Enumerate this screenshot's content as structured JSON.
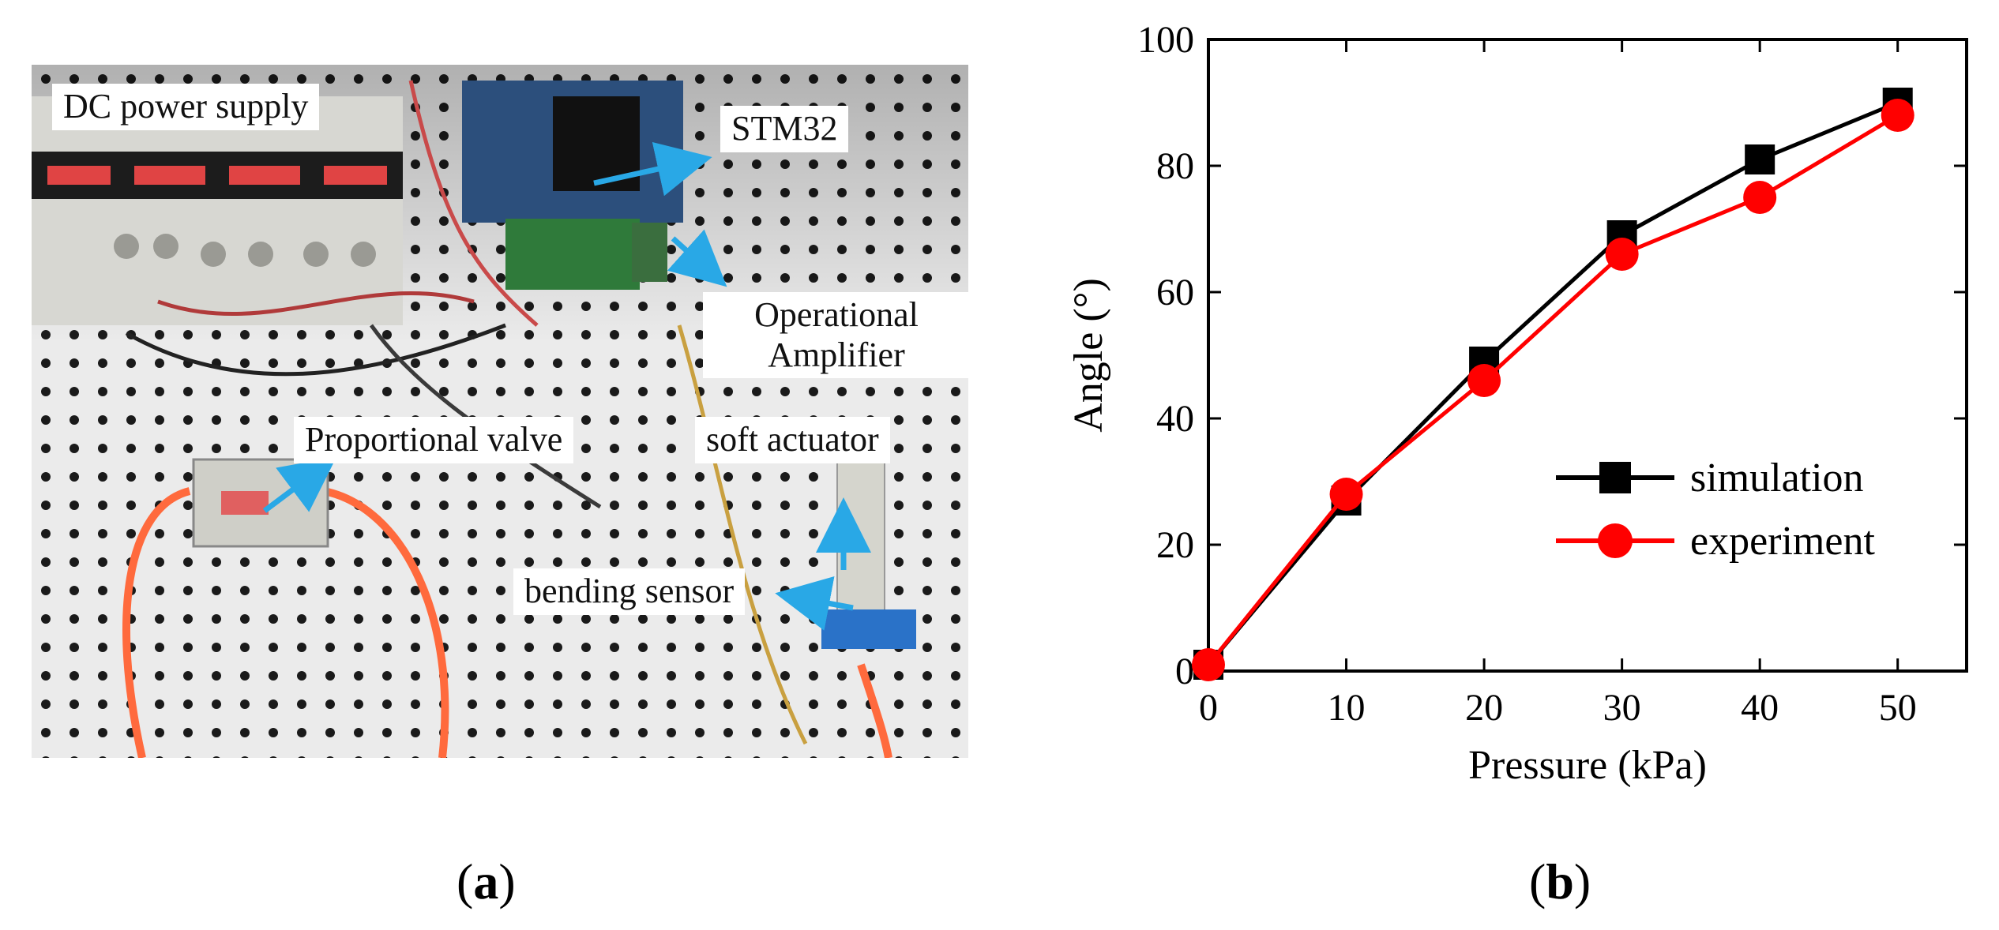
{
  "figure": {
    "panel_a": {
      "caption_open": "(",
      "caption_letter": "a",
      "caption_close": ")",
      "labels": {
        "dc_power_supply": "DC power supply",
        "stm32": "STM32",
        "op_amp_line1": "Operational",
        "op_amp_line2": "Amplifier",
        "proportional_valve": "Proportional valve",
        "soft_actuator": "soft actuator",
        "bending_sensor": "bending sensor"
      },
      "colors": {
        "arrow": "#29a8e6",
        "board": "#ebebeb",
        "hole": "#1a1a1a",
        "tube": "#ff6a3d"
      }
    },
    "panel_b": {
      "caption_open": "(",
      "caption_letter": "b",
      "caption_close": ")"
    }
  },
  "chart_data": {
    "type": "line",
    "title": "",
    "xlabel": "Pressure (kPa)",
    "ylabel": "Angle (°)",
    "xlim": [
      0,
      55
    ],
    "ylim": [
      0,
      100
    ],
    "xticks": [
      0,
      10,
      20,
      30,
      40,
      50
    ],
    "yticks": [
      0,
      20,
      40,
      60,
      80,
      100
    ],
    "grid": false,
    "legend_position": "lower-right",
    "x": [
      0,
      10,
      20,
      30,
      40,
      50
    ],
    "series": [
      {
        "name": "simulation",
        "marker": "square",
        "color": "#000000",
        "values": [
          1,
          27,
          49,
          69,
          81,
          90
        ]
      },
      {
        "name": "experiment",
        "marker": "circle",
        "color": "#ff0000",
        "values": [
          1,
          28,
          46,
          66,
          75,
          88
        ]
      }
    ]
  }
}
